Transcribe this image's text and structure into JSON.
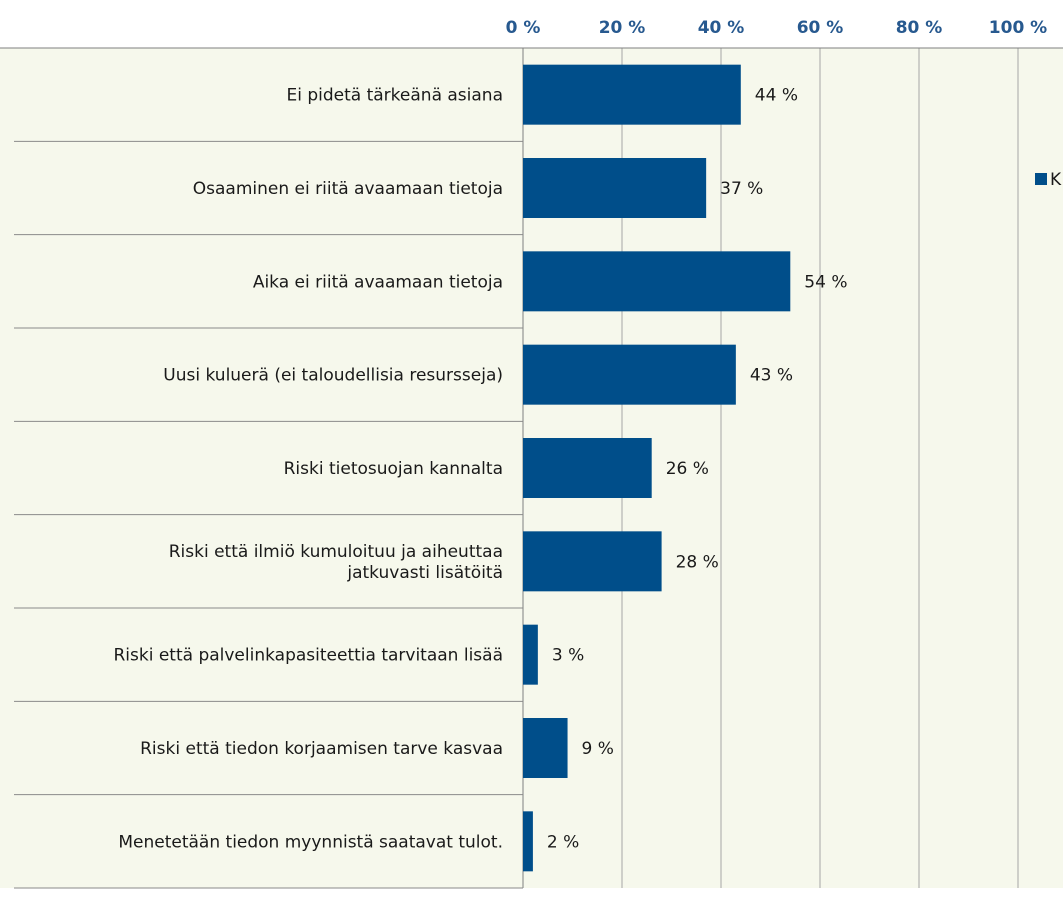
{
  "chart_data": {
    "type": "bar",
    "orientation": "horizontal",
    "categories": [
      "Ei pidetä tärkeänä asiana",
      "Osaaminen ei riitä avaamaan tietoja",
      "Aika ei riitä avaamaan tietoja",
      "Uusi kuluerä (ei taloudellisia resursseja)",
      "Riski tietosuojan kannalta",
      "Riski että ilmiö kumuloituu ja aiheuttaa jatkuvasti lisätöitä",
      "Riski että palvelinkapasiteettia tarvitaan lisää",
      "Riski että tiedon korjaamisen tarve kasvaa",
      "Menetetään tiedon myynnistä saatavat tulot."
    ],
    "category_lines": [
      [
        "Ei pidetä tärkeänä asiana"
      ],
      [
        "Osaaminen ei riitä avaamaan tietoja"
      ],
      [
        "Aika ei riitä avaamaan tietoja"
      ],
      [
        "Uusi kuluerä (ei taloudellisia resursseja)"
      ],
      [
        "Riski tietosuojan kannalta"
      ],
      [
        "Riski että ilmiö kumuloituu ja aiheuttaa",
        "jatkuvasti lisätöitä"
      ],
      [
        "Riski että palvelinkapasiteettia tarvitaan lisää"
      ],
      [
        "Riski että tiedon korjaamisen tarve kasvaa"
      ],
      [
        "Menetetään tiedon myynnistä saatavat tulot."
      ]
    ],
    "values": [
      44,
      37,
      54,
      43,
      26,
      28,
      3,
      9,
      2
    ],
    "value_labels": [
      "44 %",
      "37 %",
      "54 %",
      "43 %",
      "26 %",
      "28 %",
      "3 %",
      "9 %",
      "2 %"
    ],
    "xlim": [
      0,
      100
    ],
    "xticks": [
      0,
      20,
      40,
      60,
      80,
      100
    ],
    "xtick_labels": [
      "0 %",
      "20 %",
      "40 %",
      "60 %",
      "80 %",
      "100 %"
    ],
    "axis_position": "top",
    "grid": true,
    "legend": {
      "placement": "right",
      "entries": [
        "K"
      ]
    },
    "colors": {
      "bar": "#004e8a",
      "plot_background": "#f6f8ec",
      "grid": "#a6a6a6",
      "tick_text": "#27598f",
      "text": "#1a1a1a"
    }
  }
}
